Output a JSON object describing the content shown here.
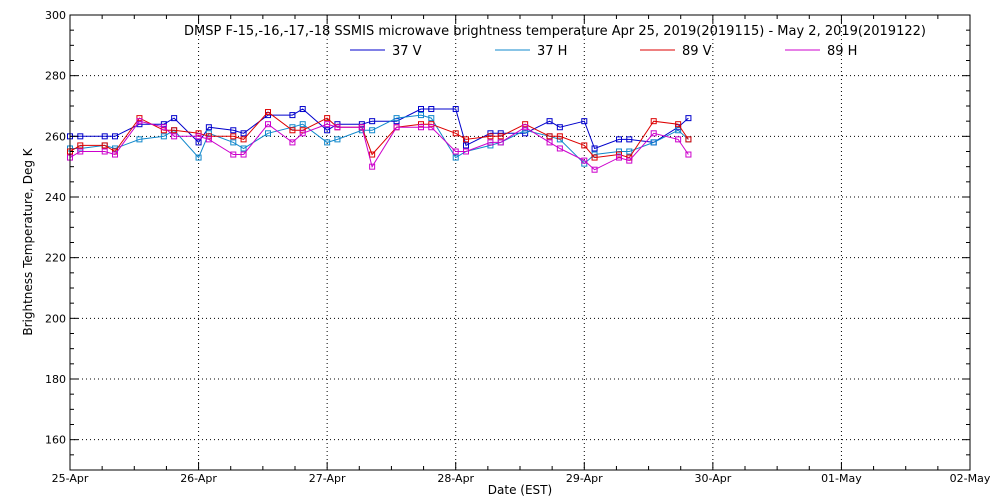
{
  "chart_data": {
    "type": "line",
    "title": "DMSP F-15,-16,-17,-18 SSMIS microwave brightness temperature Apr 25, 2019(2019115) - May  2, 2019(2019122)",
    "xlabel": "Date (EST)",
    "ylabel": "Brightness Temperature, Deg K",
    "ylim": [
      150,
      300
    ],
    "yticks": [
      160,
      180,
      200,
      220,
      240,
      260,
      280,
      300
    ],
    "xlim": [
      0,
      7
    ],
    "xtick_labels": [
      "25-Apr",
      "26-Apr",
      "27-Apr",
      "28-Apr",
      "29-Apr",
      "30-Apr",
      "01-May",
      "02-May"
    ],
    "grid": true,
    "legend_placement": "top-center",
    "series": [
      {
        "name": "37 V",
        "color": "#0000cc",
        "x": [
          0.0,
          0.08,
          0.27,
          0.35,
          0.54,
          0.73,
          0.81,
          1.0,
          1.08,
          1.27,
          1.35,
          1.54,
          1.73,
          1.81,
          2.0,
          2.08,
          2.27,
          2.35,
          2.54,
          2.73,
          2.81,
          3.0,
          3.08,
          3.27,
          3.35,
          3.54,
          3.73,
          3.81,
          4.0,
          4.08,
          4.27,
          4.35,
          4.54,
          4.73,
          4.81
        ],
        "values": [
          260,
          260,
          260,
          260,
          264,
          264,
          266,
          258,
          263,
          262,
          261,
          267,
          267,
          269,
          262,
          264,
          264,
          265,
          265,
          269,
          269,
          269,
          257,
          261,
          261,
          261,
          265,
          263,
          265,
          256,
          259,
          259,
          258,
          263,
          266
        ]
      },
      {
        "name": "37 H",
        "color": "#1188cc",
        "x": [
          0.0,
          0.08,
          0.27,
          0.35,
          0.54,
          0.73,
          0.81,
          1.0,
          1.08,
          1.27,
          1.35,
          1.54,
          1.73,
          1.81,
          2.0,
          2.08,
          2.27,
          2.35,
          2.54,
          2.73,
          2.81,
          3.0,
          3.08,
          3.27,
          3.35,
          3.54,
          3.73,
          3.81,
          4.0,
          4.08,
          4.27,
          4.35,
          4.54,
          4.73,
          4.81
        ],
        "values": [
          256,
          256,
          257,
          256,
          259,
          260,
          262,
          253,
          261,
          258,
          256,
          261,
          263,
          264,
          258,
          259,
          262,
          262,
          266,
          267,
          266,
          253,
          255,
          257,
          258,
          262,
          260,
          259,
          251,
          254,
          255,
          255,
          258,
          262,
          259
        ]
      },
      {
        "name": "89 V",
        "color": "#dd0000",
        "x": [
          0.0,
          0.08,
          0.27,
          0.35,
          0.54,
          0.73,
          0.81,
          1.0,
          1.08,
          1.27,
          1.35,
          1.54,
          1.73,
          1.81,
          2.0,
          2.08,
          2.27,
          2.35,
          2.54,
          2.73,
          2.81,
          3.0,
          3.08,
          3.27,
          3.35,
          3.54,
          3.73,
          3.81,
          4.0,
          4.08,
          4.27,
          4.35,
          4.54,
          4.73,
          4.81
        ],
        "values": [
          255,
          257,
          257,
          255,
          266,
          262,
          262,
          261,
          260,
          260,
          259,
          268,
          262,
          262,
          266,
          263,
          263,
          254,
          263,
          264,
          264,
          261,
          259,
          260,
          260,
          264,
          260,
          260,
          257,
          253,
          254,
          253,
          265,
          264,
          259
        ]
      },
      {
        "name": "89 H",
        "color": "#cc00cc",
        "x": [
          0.0,
          0.08,
          0.27,
          0.35,
          0.54,
          0.73,
          0.81,
          1.0,
          1.08,
          1.27,
          1.35,
          1.54,
          1.73,
          1.81,
          2.0,
          2.08,
          2.27,
          2.35,
          2.54,
          2.73,
          2.81,
          3.0,
          3.08,
          3.27,
          3.35,
          3.54,
          3.73,
          3.81,
          4.0,
          4.08,
          4.27,
          4.35,
          4.54,
          4.73,
          4.81
        ],
        "values": [
          253,
          255,
          255,
          254,
          265,
          263,
          260,
          260,
          259,
          254,
          254,
          264,
          258,
          261,
          264,
          263,
          263,
          250,
          263,
          263,
          263,
          255,
          255,
          258,
          258,
          263,
          258,
          256,
          252,
          249,
          253,
          252,
          261,
          259,
          254
        ]
      }
    ]
  }
}
